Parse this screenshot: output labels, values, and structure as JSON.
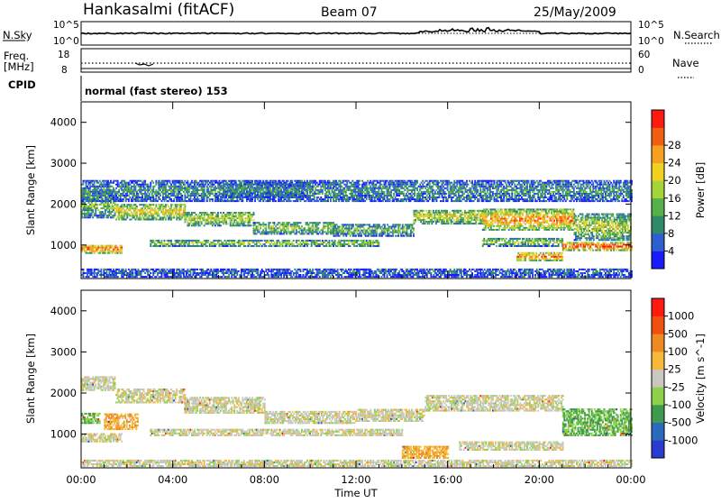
{
  "header": {
    "station": "Hankasalmi (fitACF)",
    "beam": "Beam 07",
    "date": "25/May/2009"
  },
  "strips": {
    "nsky_label": "N.Sky",
    "nsearch_label": "N.Search",
    "freq_label_line1": "Freq.",
    "freq_label_line2": "[MHz]",
    "nave_label": "Nave",
    "cpid_label": "CPID",
    "noise_ticks_left": [
      "10^5",
      "10^0"
    ],
    "noise_ticks_right": [
      "10^5",
      "10^0"
    ],
    "freq_ticks_left": [
      "18",
      "8"
    ],
    "freq_ticks_right": [
      "60",
      "0"
    ],
    "cpid_text": "normal (fast stereo) 153"
  },
  "chart_data": [
    {
      "type": "heatmap",
      "name": "power",
      "ylabel": "Slant Range [km]",
      "xlabel": "Time UT",
      "x_ticks": [
        "00:00",
        "04:00",
        "08:00",
        "12:00",
        "16:00",
        "20:00",
        "00:00"
      ],
      "x_range_hours": [
        0,
        24
      ],
      "y_ticks": [
        1000,
        2000,
        3000,
        4000
      ],
      "ylim": [
        180,
        4500
      ],
      "colorbar_label": "Power [dB]",
      "colorbar_ticks": [
        "4",
        "8",
        "12",
        "16",
        "20",
        "24",
        "28"
      ],
      "colorbar_colors": [
        "#1a1aff",
        "#2f5fcf",
        "#2f8a6a",
        "#55b04a",
        "#a6d23a",
        "#f0d020",
        "#f5a020",
        "#f06010",
        "#ff1a10"
      ],
      "bands": [
        {
          "t0": 0.0,
          "t1": 1.5,
          "r0": 1650,
          "r1": 2300,
          "level": 0.45
        },
        {
          "t0": 1.5,
          "t1": 4.5,
          "r0": 1600,
          "r1": 2000,
          "level": 0.65
        },
        {
          "t0": 4.5,
          "t1": 7.5,
          "r0": 1450,
          "r1": 1800,
          "level": 0.55
        },
        {
          "t0": 7.5,
          "t1": 11.0,
          "r0": 1250,
          "r1": 1550,
          "level": 0.45
        },
        {
          "t0": 11.0,
          "t1": 14.5,
          "r0": 1200,
          "r1": 1500,
          "level": 0.4
        },
        {
          "t0": 14.5,
          "t1": 17.5,
          "r0": 1500,
          "r1": 1850,
          "level": 0.6
        },
        {
          "t0": 17.5,
          "t1": 21.5,
          "r0": 1350,
          "r1": 1850,
          "level": 0.8
        },
        {
          "t0": 21.5,
          "t1": 24.0,
          "r0": 1100,
          "r1": 1750,
          "level": 0.55
        },
        {
          "t0": 0.0,
          "t1": 1.8,
          "r0": 780,
          "r1": 1000,
          "level": 0.9
        },
        {
          "t0": 3.0,
          "t1": 13.0,
          "r0": 950,
          "r1": 1100,
          "level": 0.5
        },
        {
          "t0": 17.5,
          "t1": 21.0,
          "r0": 950,
          "r1": 1150,
          "level": 0.5
        },
        {
          "t0": 21.0,
          "t1": 24.0,
          "r0": 850,
          "r1": 1050,
          "level": 0.95
        },
        {
          "t0": 19.0,
          "t1": 21.0,
          "r0": 600,
          "r1": 800,
          "level": 0.85
        },
        {
          "t0": 0.0,
          "t1": 24.0,
          "r0": 200,
          "r1": 420,
          "level": 0.2
        },
        {
          "t0": 0.0,
          "t1": 24.0,
          "r0": 2050,
          "r1": 2550,
          "level": 0.3
        },
        {
          "t0": 6.0,
          "t1": 10.0,
          "r0": 2150,
          "r1": 2500,
          "level": 0.3
        }
      ]
    },
    {
      "type": "heatmap",
      "name": "velocity",
      "ylabel": "Slant Range [km]",
      "xlabel": "Time UT",
      "x_ticks": [
        "00:00",
        "04:00",
        "08:00",
        "12:00",
        "16:00",
        "20:00",
        "00:00"
      ],
      "x_range_hours": [
        0,
        24
      ],
      "y_ticks": [
        1000,
        2000,
        3000,
        4000
      ],
      "ylim": [
        180,
        4500
      ],
      "colorbar_label": "Velocity [m s^-1]",
      "colorbar_ticks": [
        "1000",
        "500",
        "100",
        "25",
        "-25",
        "-100",
        "-500",
        "-1000"
      ],
      "colorbar_colors": [
        "#2a3ccf",
        "#2c6ac0",
        "#3f9a50",
        "#8cd24a",
        "#c8c8c0",
        "#f5b83a",
        "#f08a20",
        "#f05010",
        "#ff1a10"
      ],
      "bands": [
        {
          "t0": 0.0,
          "t1": 1.5,
          "r0": 2050,
          "r1": 2400,
          "level": 0.5
        },
        {
          "t0": 1.5,
          "t1": 4.5,
          "r0": 1750,
          "r1": 2100,
          "level": 0.5
        },
        {
          "t0": 4.5,
          "t1": 8.0,
          "r0": 1500,
          "r1": 1900,
          "level": 0.5
        },
        {
          "t0": 8.0,
          "t1": 12.0,
          "r0": 1250,
          "r1": 1550,
          "level": 0.5
        },
        {
          "t0": 12.0,
          "t1": 15.0,
          "r0": 1300,
          "r1": 1600,
          "level": 0.5
        },
        {
          "t0": 15.0,
          "t1": 21.0,
          "r0": 1550,
          "r1": 1950,
          "level": 0.5
        },
        {
          "t0": 3.0,
          "t1": 14.0,
          "r0": 950,
          "r1": 1100,
          "level": 0.5
        },
        {
          "t0": 0.0,
          "t1": 1.8,
          "r0": 800,
          "r1": 1000,
          "level": 0.5
        },
        {
          "t0": 16.5,
          "t1": 21.0,
          "r0": 600,
          "r1": 800,
          "level": 0.5
        },
        {
          "t0": 21.0,
          "t1": 24.0,
          "r0": 950,
          "r1": 1600,
          "level": 0.33
        },
        {
          "t0": 0.0,
          "t1": 0.8,
          "r0": 1250,
          "r1": 1500,
          "level": 0.36
        },
        {
          "t0": 1.0,
          "t1": 2.5,
          "r0": 1100,
          "r1": 1500,
          "level": 0.64
        },
        {
          "t0": 14.0,
          "t1": 16.0,
          "r0": 400,
          "r1": 700,
          "level": 0.65
        },
        {
          "t0": 0.0,
          "t1": 24.0,
          "r0": 200,
          "r1": 380,
          "level": 0.5
        }
      ]
    }
  ]
}
